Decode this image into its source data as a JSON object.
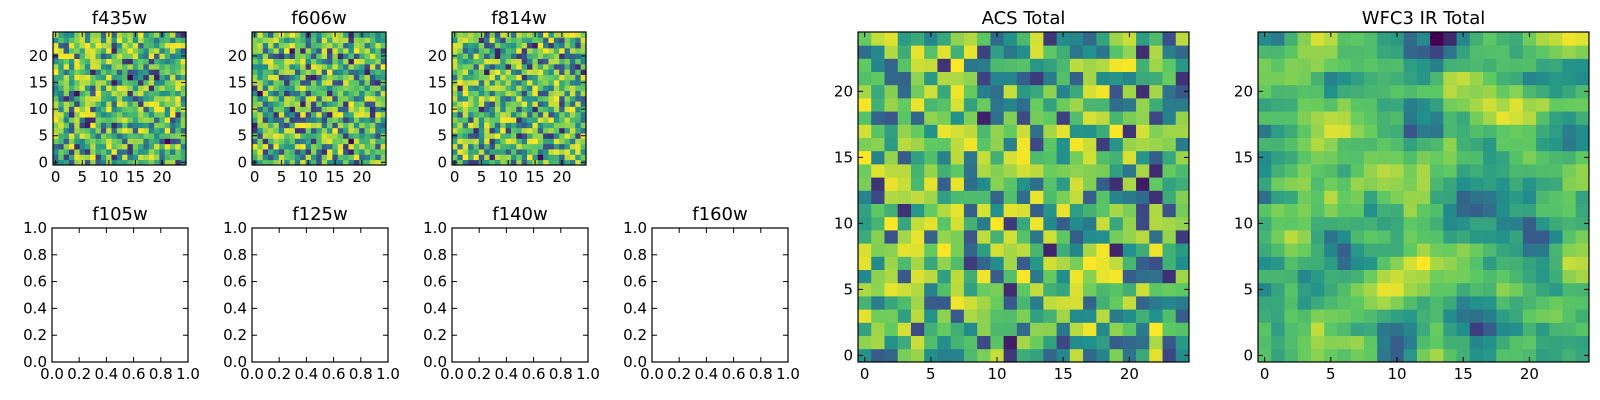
{
  "figure": {
    "background": "#ffffff",
    "colormap": [
      "#440154",
      "#3b528b",
      "#21918c",
      "#5ec962",
      "#fde725"
    ]
  },
  "chart_data": [
    {
      "type": "heatmap",
      "title": "f435w",
      "grid_size": 25,
      "xticks": [
        "0",
        "5",
        "10",
        "15",
        "20"
      ],
      "yticks": [
        "0",
        "5",
        "10",
        "15",
        "20"
      ],
      "xlim": [
        -0.5,
        24.5
      ],
      "ylim": [
        -0.5,
        24.5
      ],
      "seed": 11,
      "smooth": 0,
      "bias": 0.62
    },
    {
      "type": "heatmap",
      "title": "f606w",
      "grid_size": 25,
      "xticks": [
        "0",
        "5",
        "10",
        "15",
        "20"
      ],
      "yticks": [
        "0",
        "5",
        "10",
        "15",
        "20"
      ],
      "xlim": [
        -0.5,
        24.5
      ],
      "ylim": [
        -0.5,
        24.5
      ],
      "seed": 23,
      "smooth": 0,
      "bias": 0.6
    },
    {
      "type": "heatmap",
      "title": "f814w",
      "grid_size": 25,
      "xticks": [
        "0",
        "5",
        "10",
        "15",
        "20"
      ],
      "yticks": [
        "0",
        "5",
        "10",
        "15",
        "20"
      ],
      "xlim": [
        -0.5,
        24.5
      ],
      "ylim": [
        -0.5,
        24.5
      ],
      "seed": 37,
      "smooth": 0,
      "bias": 0.63
    },
    {
      "type": "empty",
      "title": "f105w",
      "xticks": [
        "0.0",
        "0.2",
        "0.4",
        "0.6",
        "0.8",
        "1.0"
      ],
      "yticks": [
        "0.0",
        "0.2",
        "0.4",
        "0.6",
        "0.8",
        "1.0"
      ],
      "xlim": [
        0,
        1
      ],
      "ylim": [
        0,
        1
      ]
    },
    {
      "type": "empty",
      "title": "f125w",
      "xticks": [
        "0.0",
        "0.2",
        "0.4",
        "0.6",
        "0.8",
        "1.0"
      ],
      "yticks": [
        "0.0",
        "0.2",
        "0.4",
        "0.6",
        "0.8",
        "1.0"
      ],
      "xlim": [
        0,
        1
      ],
      "ylim": [
        0,
        1
      ]
    },
    {
      "type": "empty",
      "title": "f140w",
      "xticks": [
        "0.0",
        "0.2",
        "0.4",
        "0.6",
        "0.8",
        "1.0"
      ],
      "yticks": [
        "0.0",
        "0.2",
        "0.4",
        "0.6",
        "0.8",
        "1.0"
      ],
      "xlim": [
        0,
        1
      ],
      "ylim": [
        0,
        1
      ]
    },
    {
      "type": "empty",
      "title": "f160w",
      "xticks": [
        "0.0",
        "0.2",
        "0.4",
        "0.6",
        "0.8",
        "1.0"
      ],
      "yticks": [
        "0.0",
        "0.2",
        "0.4",
        "0.6",
        "0.8",
        "1.0"
      ],
      "xlim": [
        0,
        1
      ],
      "ylim": [
        0,
        1
      ]
    },
    {
      "type": "heatmap",
      "title": "ACS Total",
      "grid_size": 25,
      "xticks": [
        "0",
        "5",
        "10",
        "15",
        "20"
      ],
      "yticks": [
        "0",
        "5",
        "10",
        "15",
        "20"
      ],
      "xlim": [
        -0.5,
        24.5
      ],
      "ylim": [
        -0.5,
        24.5
      ],
      "seed": 53,
      "smooth": 0,
      "bias": 0.66
    },
    {
      "type": "heatmap",
      "title": "WFC3 IR Total",
      "grid_size": 25,
      "xticks": [
        "0",
        "5",
        "10",
        "15",
        "20"
      ],
      "yticks": [
        "0",
        "5",
        "10",
        "15",
        "20"
      ],
      "xlim": [
        -0.5,
        24.5
      ],
      "ylim": [
        -0.5,
        24.5
      ],
      "seed": 71,
      "smooth": 1,
      "bias": 0.6
    }
  ]
}
